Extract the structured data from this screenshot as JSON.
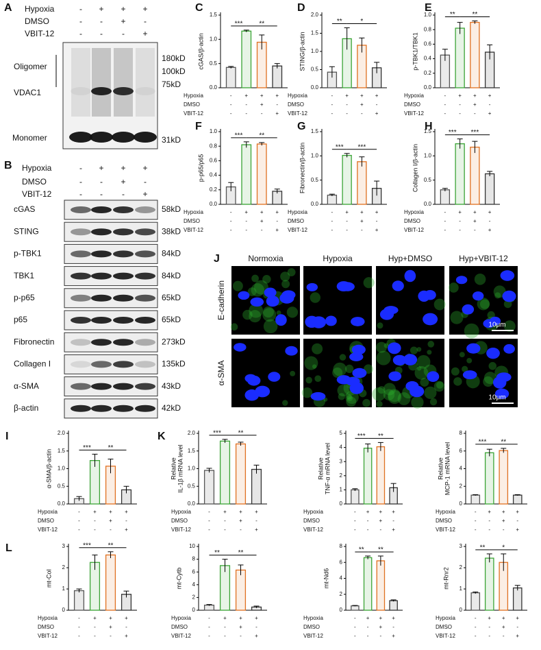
{
  "conditions": {
    "labels": [
      "Hypoxia",
      "DMSO",
      "VBIT-12"
    ],
    "signs": [
      [
        "-",
        "+",
        "+",
        "+"
      ],
      [
        "-",
        "-",
        "+",
        "-"
      ],
      [
        "-",
        "-",
        "-",
        "+"
      ]
    ]
  },
  "panel_a": {
    "letter": "A",
    "oligomer": "Oligomer",
    "protein": "VDAC1",
    "monomer": "Monomer",
    "markers": [
      "180kD",
      "100kD",
      "75kD"
    ],
    "monomer_mw": "31kD"
  },
  "panel_b": {
    "letter": "B",
    "rows": [
      {
        "protein": "cGAS",
        "mw": "58kD"
      },
      {
        "protein": "STING",
        "mw": "38kD"
      },
      {
        "protein": "p-TBK1",
        "mw": "84kD"
      },
      {
        "protein": "TBK1",
        "mw": "84kD"
      },
      {
        "protein": "p-p65",
        "mw": "65kD"
      },
      {
        "protein": "p65",
        "mw": "65kD"
      },
      {
        "protein": "Fibronectin",
        "mw": "273kD"
      },
      {
        "protein": "Collagen I",
        "mw": "135kD"
      },
      {
        "protein": "α-SMA",
        "mw": "43kD"
      },
      {
        "protein": "β-actin",
        "mw": "42kD"
      }
    ]
  },
  "panel_j": {
    "letter": "J",
    "columns": [
      "Normoxia",
      "Hypoxia",
      "Hyp+DMSO",
      "Hyp+VBIT-12"
    ],
    "rows": [
      "E-cadherin",
      "α-SMA"
    ],
    "scale": "10μm"
  },
  "chart_data": [
    {
      "type": "bar",
      "panel": "C",
      "ylabel": "cGAS/β-actin",
      "values": [
        0.42,
        1.17,
        0.94,
        0.45
      ],
      "errors": [
        0.02,
        0.02,
        0.15,
        0.05
      ],
      "colors": [
        "#555555",
        "#3aa335",
        "#e07020",
        "#333333"
      ],
      "ylim": [
        0,
        1.5
      ],
      "yticks": [
        {
          "value": 0,
          "label": "0.0"
        },
        {
          "value": 0.5,
          "label": "0.5"
        },
        {
          "value": 1,
          "label": "1.0"
        },
        {
          "value": 1.5,
          "label": "1.5"
        }
      ],
      "annotations": [
        {
          "text": "***",
          "from": 0,
          "to": 1
        },
        {
          "text": "**",
          "from": 1,
          "to": 3
        }
      ]
    },
    {
      "type": "bar",
      "panel": "D",
      "ylabel": "STING/β-actin",
      "values": [
        0.43,
        1.35,
        1.17,
        0.55
      ],
      "errors": [
        0.15,
        0.3,
        0.2,
        0.15
      ],
      "colors": [
        "#555555",
        "#3aa335",
        "#e07020",
        "#333333"
      ],
      "ylim": [
        0,
        2
      ],
      "yticks": [
        {
          "value": 0,
          "label": "0.0"
        },
        {
          "value": 0.5,
          "label": "0.5"
        },
        {
          "value": 1,
          "label": "1.0"
        },
        {
          "value": 1.5,
          "label": "1.5"
        },
        {
          "value": 2,
          "label": "2.0"
        }
      ],
      "annotations": [
        {
          "text": "**",
          "from": 0,
          "to": 1
        },
        {
          "text": "*",
          "from": 1,
          "to": 3
        }
      ]
    },
    {
      "type": "bar",
      "panel": "E",
      "ylabel": "p-TBK1/TBK1",
      "values": [
        0.45,
        0.82,
        0.9,
        0.49
      ],
      "errors": [
        0.08,
        0.08,
        0.02,
        0.1
      ],
      "colors": [
        "#555555",
        "#3aa335",
        "#e07020",
        "#333333"
      ],
      "ylim": [
        0,
        1
      ],
      "yticks": [
        {
          "value": 0,
          "label": "0.0"
        },
        {
          "value": 0.2,
          "label": "0.2"
        },
        {
          "value": 0.4,
          "label": "0.4"
        },
        {
          "value": 0.6,
          "label": "0.6"
        },
        {
          "value": 0.8,
          "label": "0.8"
        },
        {
          "value": 1,
          "label": "1.0"
        }
      ],
      "annotations": [
        {
          "text": "**",
          "from": 0,
          "to": 1
        },
        {
          "text": "**",
          "from": 1,
          "to": 3
        }
      ]
    },
    {
      "type": "bar",
      "panel": "F",
      "ylabel": "p-p65/p65",
      "values": [
        0.24,
        0.82,
        0.83,
        0.18
      ],
      "errors": [
        0.06,
        0.04,
        0.02,
        0.03
      ],
      "colors": [
        "#555555",
        "#3aa335",
        "#e07020",
        "#333333"
      ],
      "ylim": [
        0,
        1
      ],
      "yticks": [
        {
          "value": 0,
          "label": "0.0"
        },
        {
          "value": 0.2,
          "label": "0.2"
        },
        {
          "value": 0.4,
          "label": "0.4"
        },
        {
          "value": 0.6,
          "label": "0.6"
        },
        {
          "value": 0.8,
          "label": "0.8"
        },
        {
          "value": 1,
          "label": "1.0"
        }
      ],
      "annotations": [
        {
          "text": "***",
          "from": 0,
          "to": 1
        },
        {
          "text": "**",
          "from": 1,
          "to": 3
        }
      ]
    },
    {
      "type": "bar",
      "panel": "G",
      "ylabel": "Fibronectin/β-actin",
      "values": [
        0.19,
        1.01,
        0.88,
        0.33
      ],
      "errors": [
        0.02,
        0.04,
        0.1,
        0.15
      ],
      "colors": [
        "#555555",
        "#3aa335",
        "#e07020",
        "#333333"
      ],
      "ylim": [
        0,
        1.5
      ],
      "yticks": [
        {
          "value": 0,
          "label": "0.0"
        },
        {
          "value": 0.5,
          "label": "0.5"
        },
        {
          "value": 1,
          "label": "1.0"
        },
        {
          "value": 1.5,
          "label": "1.5"
        }
      ],
      "annotations": [
        {
          "text": "***",
          "from": 0,
          "to": 1
        },
        {
          "text": "***",
          "from": 1,
          "to": 3
        }
      ]
    },
    {
      "type": "bar",
      "panel": "H",
      "ylabel": "Collagen I/β-actin",
      "values": [
        0.3,
        1.25,
        1.18,
        0.63
      ],
      "errors": [
        0.03,
        0.1,
        0.12,
        0.05
      ],
      "colors": [
        "#555555",
        "#3aa335",
        "#e07020",
        "#333333"
      ],
      "ylim": [
        0,
        1.5
      ],
      "yticks": [
        {
          "value": 0,
          "label": "0.0"
        },
        {
          "value": 0.5,
          "label": "0.5"
        },
        {
          "value": 1,
          "label": "1.0"
        },
        {
          "value": 1.5,
          "label": "1.5"
        }
      ],
      "annotations": [
        {
          "text": "***",
          "from": 0,
          "to": 1
        },
        {
          "text": "***",
          "from": 1,
          "to": 3
        }
      ]
    },
    {
      "type": "bar",
      "panel": "I",
      "ylabel": "α-SMA/β-actin",
      "values": [
        0.15,
        1.23,
        1.07,
        0.4
      ],
      "errors": [
        0.06,
        0.18,
        0.2,
        0.1
      ],
      "colors": [
        "#555555",
        "#3aa335",
        "#e07020",
        "#333333"
      ],
      "ylim": [
        0,
        2
      ],
      "yticks": [
        {
          "value": 0,
          "label": "0.0"
        },
        {
          "value": 0.5,
          "label": "0.5"
        },
        {
          "value": 1,
          "label": "1.0"
        },
        {
          "value": 1.5,
          "label": "1.5"
        },
        {
          "value": 2,
          "label": "2.0"
        }
      ],
      "annotations": [
        {
          "text": "***",
          "from": 0,
          "to": 1
        },
        {
          "text": "**",
          "from": 1,
          "to": 3
        }
      ]
    },
    {
      "type": "bar",
      "panel": "K",
      "ylabel": [
        "Relative",
        "IL-1β mRNA level"
      ],
      "values": [
        0.95,
        1.78,
        1.7,
        0.98
      ],
      "errors": [
        0.06,
        0.05,
        0.05,
        0.12
      ],
      "colors": [
        "#555555",
        "#3aa335",
        "#e07020",
        "#333333"
      ],
      "ylim": [
        0,
        2
      ],
      "yticks": [
        {
          "value": 0,
          "label": "0.0"
        },
        {
          "value": 0.5,
          "label": "0.5"
        },
        {
          "value": 1,
          "label": "1.0"
        },
        {
          "value": 1.5,
          "label": "1.5"
        },
        {
          "value": 2,
          "label": "2.0"
        }
      ],
      "annotations": [
        {
          "text": "***",
          "from": 0,
          "to": 1
        },
        {
          "text": "**",
          "from": 1,
          "to": 3
        }
      ]
    },
    {
      "type": "bar",
      "ylabel": [
        "Relative",
        "TNF-α mRNA level"
      ],
      "values": [
        1.0,
        3.95,
        4.05,
        1.15
      ],
      "errors": [
        0.08,
        0.3,
        0.3,
        0.3
      ],
      "colors": [
        "#555555",
        "#3aa335",
        "#e07020",
        "#333333"
      ],
      "ylim": [
        0,
        5
      ],
      "yticks": [
        0,
        1,
        2,
        3,
        4,
        5
      ],
      "annotations": [
        {
          "text": "***",
          "from": 0,
          "to": 1
        },
        {
          "text": "**",
          "from": 1,
          "to": 3
        }
      ]
    },
    {
      "type": "bar",
      "ylabel": [
        "Relative",
        "MCP-1 mRNA level"
      ],
      "values": [
        1.0,
        5.8,
        6.05,
        1.0
      ],
      "errors": [
        0.05,
        0.4,
        0.25,
        0.05
      ],
      "colors": [
        "#555555",
        "#3aa335",
        "#e07020",
        "#333333"
      ],
      "ylim": [
        0,
        8
      ],
      "yticks": [
        0,
        2,
        4,
        6,
        8
      ],
      "annotations": [
        {
          "text": "***",
          "from": 0,
          "to": 1
        },
        {
          "text": "**",
          "from": 1,
          "to": 3
        }
      ]
    },
    {
      "type": "bar",
      "panel": "L",
      "ylabel": "mt-CoI",
      "values": [
        0.92,
        2.25,
        2.6,
        0.75
      ],
      "errors": [
        0.08,
        0.35,
        0.15,
        0.15
      ],
      "colors": [
        "#555555",
        "#3aa335",
        "#e07020",
        "#333333"
      ],
      "ylim": [
        0,
        3
      ],
      "yticks": [
        0,
        1,
        2,
        3
      ],
      "annotations": [
        {
          "text": "***",
          "from": 0,
          "to": 1
        },
        {
          "text": "**",
          "from": 1,
          "to": 3
        }
      ]
    },
    {
      "type": "bar",
      "ylabel": "mt-Cytb",
      "values": [
        0.8,
        7.0,
        6.3,
        0.5
      ],
      "errors": [
        0.1,
        1.0,
        0.8,
        0.15
      ],
      "colors": [
        "#555555",
        "#3aa335",
        "#e07020",
        "#333333"
      ],
      "ylim": [
        0,
        10
      ],
      "yticks": [
        0,
        2,
        4,
        6,
        8,
        10
      ],
      "annotations": [
        {
          "text": "**",
          "from": 0,
          "to": 1
        },
        {
          "text": "**",
          "from": 1,
          "to": 3
        }
      ]
    },
    {
      "type": "bar",
      "ylabel": "mt-Nd6",
      "values": [
        0.55,
        6.6,
        6.2,
        1.2
      ],
      "errors": [
        0.05,
        0.2,
        0.6,
        0.1
      ],
      "colors": [
        "#555555",
        "#3aa335",
        "#e07020",
        "#333333"
      ],
      "ylim": [
        0,
        8
      ],
      "yticks": [
        0,
        2,
        4,
        6,
        8
      ],
      "annotations": [
        {
          "text": "**",
          "from": 0,
          "to": 1
        },
        {
          "text": "**",
          "from": 1,
          "to": 3
        }
      ]
    },
    {
      "type": "bar",
      "ylabel": "mt-Rnr2",
      "values": [
        0.82,
        2.45,
        2.25,
        1.05
      ],
      "errors": [
        0.04,
        0.2,
        0.4,
        0.12
      ],
      "colors": [
        "#555555",
        "#3aa335",
        "#e07020",
        "#333333"
      ],
      "ylim": [
        0,
        3
      ],
      "yticks": [
        0,
        1,
        2,
        3
      ],
      "annotations": [
        {
          "text": "**",
          "from": 0,
          "to": 1
        },
        {
          "text": "*",
          "from": 1,
          "to": 3
        }
      ]
    }
  ]
}
